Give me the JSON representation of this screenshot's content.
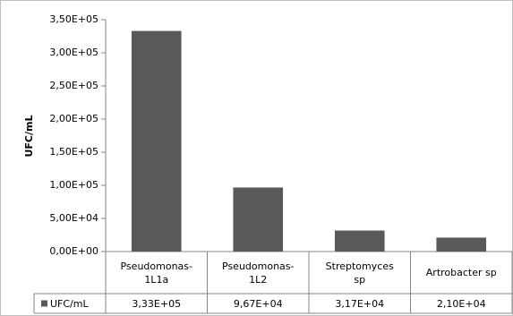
{
  "chart_data": {
    "type": "bar",
    "y_label": "UFC/mL",
    "categories": [
      "Pseudomonas-1L1a",
      "Pseudomonas-1L2",
      "Streptomyces sp",
      "Artrobacter sp"
    ],
    "series": [
      {
        "name": "UFC/mL",
        "color": "#595959",
        "values": [
          333000,
          96700,
          31700,
          21000
        ],
        "value_labels": [
          "3,33E+05",
          "9,67E+04",
          "3,17E+04",
          "2,10E+04"
        ]
      }
    ],
    "ylim": [
      0,
      350000
    ],
    "yticks": [
      {
        "value": 0,
        "label": "0,00E+00"
      },
      {
        "value": 50000,
        "label": "5,00E+04"
      },
      {
        "value": 100000,
        "label": "1,00E+05"
      },
      {
        "value": 150000,
        "label": "1,50E+05"
      },
      {
        "value": 200000,
        "label": "2,00E+05"
      },
      {
        "value": 250000,
        "label": "2,50E+05"
      },
      {
        "value": 300000,
        "label": "3,00E+05"
      },
      {
        "value": 350000,
        "label": "3,50E+05"
      }
    ],
    "grid": false
  }
}
